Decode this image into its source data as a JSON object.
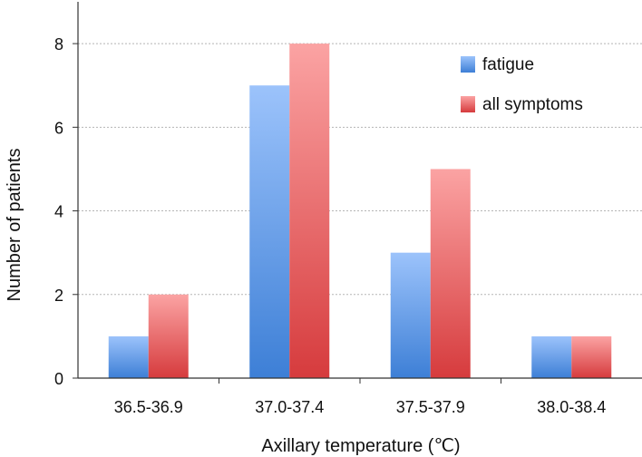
{
  "chart_data": {
    "type": "bar",
    "title": "",
    "xlabel": "Axillary temperature (℃)",
    "ylabel": "Number of patients",
    "categories": [
      "36.5-36.9",
      "37.0-37.4",
      "37.5-37.9",
      "38.0-38.4"
    ],
    "series": [
      {
        "name": "fatigue",
        "values": [
          1,
          7,
          3,
          1
        ],
        "color_top": "#9cc3fb",
        "color_bottom": "#3d7fd6"
      },
      {
        "name": "all symptoms",
        "values": [
          2,
          8,
          5,
          1
        ],
        "color_top": "#fba3a3",
        "color_bottom": "#d63b3d"
      }
    ],
    "ylim": [
      0,
      9
    ],
    "yticks": [
      0,
      2,
      4,
      6,
      8
    ],
    "grid": true,
    "legend_position": "top-right"
  }
}
